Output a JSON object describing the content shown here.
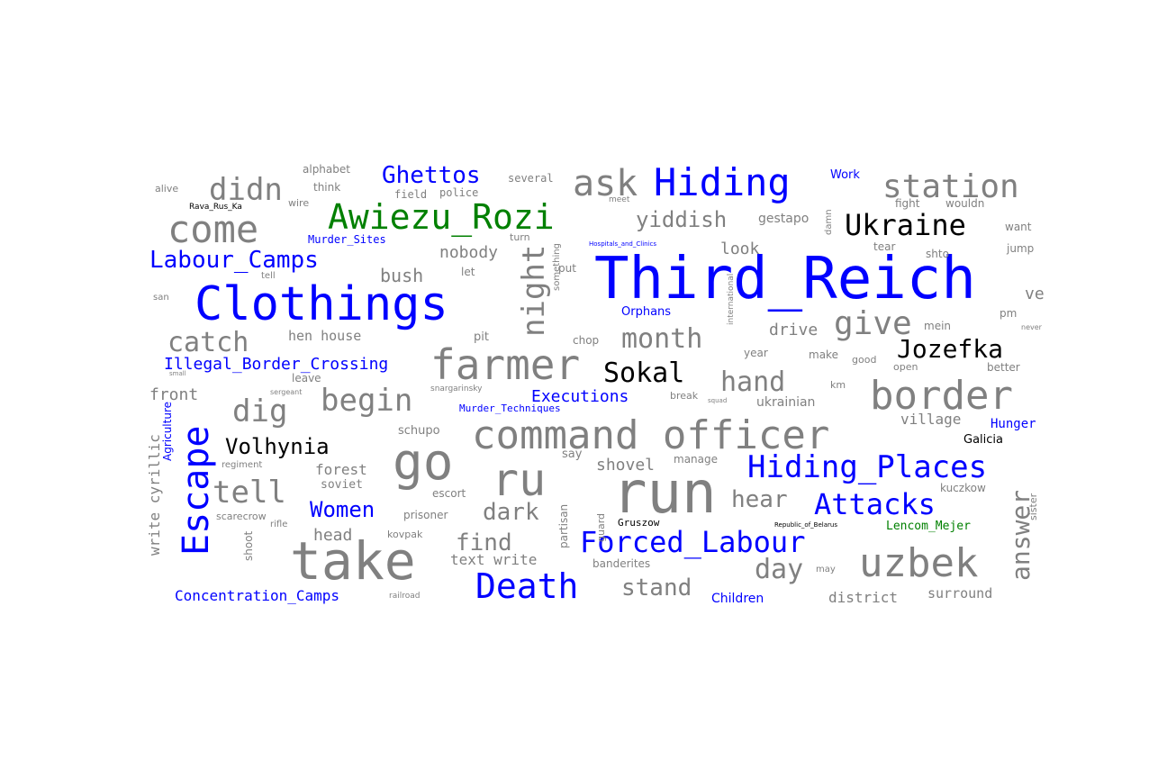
{
  "palette": {
    "topic": "#0000ff",
    "person": "#008000",
    "place": "#000000",
    "term": "#808080"
  },
  "words": [
    {
      "text": "Third_Reich",
      "cat": "topic"
    },
    {
      "text": "Clothings",
      "cat": "topic"
    },
    {
      "text": "take",
      "cat": "term"
    },
    {
      "text": "run",
      "cat": "term"
    },
    {
      "text": "go",
      "cat": "term"
    },
    {
      "text": "command officer",
      "cat": "term"
    },
    {
      "text": "farmer",
      "cat": "term"
    },
    {
      "text": "border",
      "cat": "term"
    },
    {
      "text": "Awiezu_Rozi",
      "cat": "person"
    },
    {
      "text": "Hiding",
      "cat": "topic"
    },
    {
      "text": "uzbek",
      "cat": "term"
    },
    {
      "text": "Escape",
      "cat": "topic"
    },
    {
      "text": "ru",
      "cat": "term"
    },
    {
      "text": "come",
      "cat": "term"
    },
    {
      "text": "ask",
      "cat": "term"
    },
    {
      "text": "station",
      "cat": "term"
    },
    {
      "text": "Hiding_Places",
      "cat": "topic"
    },
    {
      "text": "Death",
      "cat": "topic"
    },
    {
      "text": "Forced_Labour",
      "cat": "topic"
    },
    {
      "text": "Ukraine",
      "cat": "place"
    },
    {
      "text": "night",
      "cat": "term"
    },
    {
      "text": "give",
      "cat": "term"
    },
    {
      "text": "begin",
      "cat": "term"
    },
    {
      "text": "Attacks",
      "cat": "topic"
    },
    {
      "text": "tell",
      "cat": "term"
    },
    {
      "text": "Jozefka",
      "cat": "place"
    },
    {
      "text": "catch",
      "cat": "term"
    },
    {
      "text": "didn",
      "cat": "term"
    },
    {
      "text": "Sokal",
      "cat": "place"
    },
    {
      "text": "yiddish",
      "cat": "term"
    },
    {
      "text": "month",
      "cat": "term"
    },
    {
      "text": "hand",
      "cat": "term"
    },
    {
      "text": "dig",
      "cat": "term"
    },
    {
      "text": "answer",
      "cat": "term"
    },
    {
      "text": "day",
      "cat": "term"
    },
    {
      "text": "Labour_Camps",
      "cat": "topic"
    },
    {
      "text": "Ghettos",
      "cat": "topic"
    },
    {
      "text": "Volhynia",
      "cat": "place"
    },
    {
      "text": "hear",
      "cat": "term"
    },
    {
      "text": "stand",
      "cat": "term"
    },
    {
      "text": "find",
      "cat": "term"
    },
    {
      "text": "Women",
      "cat": "topic"
    },
    {
      "text": "dark",
      "cat": "term"
    },
    {
      "text": "shovel",
      "cat": "term"
    },
    {
      "text": "Illegal_Border_Crossing",
      "cat": "topic"
    },
    {
      "text": "Executions",
      "cat": "topic"
    },
    {
      "text": "drive",
      "cat": "term"
    },
    {
      "text": "nobody",
      "cat": "term"
    },
    {
      "text": "bush",
      "cat": "term"
    },
    {
      "text": "front",
      "cat": "term"
    },
    {
      "text": "look",
      "cat": "term"
    },
    {
      "text": "write cyrillic",
      "cat": "term"
    },
    {
      "text": "village",
      "cat": "term"
    },
    {
      "text": "forest",
      "cat": "term"
    },
    {
      "text": "district",
      "cat": "term"
    },
    {
      "text": "Concentration_Camps",
      "cat": "topic"
    },
    {
      "text": "text write",
      "cat": "term"
    },
    {
      "text": "head",
      "cat": "term"
    },
    {
      "text": "surround",
      "cat": "term"
    },
    {
      "text": "soviet",
      "cat": "term"
    },
    {
      "text": "hen house",
      "cat": "term"
    },
    {
      "text": "ve",
      "cat": "term"
    },
    {
      "text": "Hunger",
      "cat": "topic"
    },
    {
      "text": "Galicia",
      "cat": "place"
    },
    {
      "text": "Orphans",
      "cat": "topic"
    },
    {
      "text": "Children",
      "cat": "topic"
    },
    {
      "text": "schupo",
      "cat": "term"
    },
    {
      "text": "ukrainian",
      "cat": "term"
    },
    {
      "text": "Murder_Sites",
      "cat": "topic"
    },
    {
      "text": "Murder_Techniques",
      "cat": "topic"
    },
    {
      "text": "Work",
      "cat": "topic"
    },
    {
      "text": "Agriculture",
      "cat": "topic"
    },
    {
      "text": "Lencom_Mejer",
      "cat": "person"
    },
    {
      "text": "Gruszow",
      "cat": "place"
    },
    {
      "text": "gestapo",
      "cat": "term"
    },
    {
      "text": "several",
      "cat": "term"
    },
    {
      "text": "field",
      "cat": "term"
    },
    {
      "text": "police",
      "cat": "term"
    },
    {
      "text": "alphabet",
      "cat": "term"
    },
    {
      "text": "think",
      "cat": "term"
    },
    {
      "text": "alive",
      "cat": "term"
    },
    {
      "text": "wire",
      "cat": "term"
    },
    {
      "text": "turn",
      "cat": "term"
    },
    {
      "text": "let",
      "cat": "term"
    },
    {
      "text": "pit",
      "cat": "term"
    },
    {
      "text": "chop",
      "cat": "term"
    },
    {
      "text": "put",
      "cat": "term"
    },
    {
      "text": "something",
      "cat": "term"
    },
    {
      "text": "partisan",
      "cat": "term"
    },
    {
      "text": "guard",
      "cat": "term"
    },
    {
      "text": "say",
      "cat": "term"
    },
    {
      "text": "escort",
      "cat": "term"
    },
    {
      "text": "prisoner",
      "cat": "term"
    },
    {
      "text": "kovpak",
      "cat": "term"
    },
    {
      "text": "banderites",
      "cat": "term"
    },
    {
      "text": "scarecrow",
      "cat": "term"
    },
    {
      "text": "shoot",
      "cat": "term"
    },
    {
      "text": "rifle",
      "cat": "term"
    },
    {
      "text": "regiment",
      "cat": "term"
    },
    {
      "text": "leave",
      "cat": "term"
    },
    {
      "text": "sergeant",
      "cat": "term"
    },
    {
      "text": "manage",
      "cat": "term"
    },
    {
      "text": "kuczkow",
      "cat": "term"
    },
    {
      "text": "sister",
      "cat": "term"
    },
    {
      "text": "year",
      "cat": "term"
    },
    {
      "text": "make",
      "cat": "term"
    },
    {
      "text": "good",
      "cat": "term"
    },
    {
      "text": "open",
      "cat": "term"
    },
    {
      "text": "better",
      "cat": "term"
    },
    {
      "text": "km",
      "cat": "term"
    },
    {
      "text": "mein",
      "cat": "term"
    },
    {
      "text": "pm",
      "cat": "term"
    },
    {
      "text": "never",
      "cat": "term"
    },
    {
      "text": "shto",
      "cat": "term"
    },
    {
      "text": "tear",
      "cat": "term"
    },
    {
      "text": "jump",
      "cat": "term"
    },
    {
      "text": "want",
      "cat": "term"
    },
    {
      "text": "fight",
      "cat": "term"
    },
    {
      "text": "wouldn",
      "cat": "term"
    },
    {
      "text": "damn",
      "cat": "term"
    },
    {
      "text": "international",
      "cat": "term"
    },
    {
      "text": "meet",
      "cat": "term"
    },
    {
      "text": "Rava_Rus_Ka",
      "cat": "place"
    },
    {
      "text": "tell",
      "cat": "term"
    },
    {
      "text": "san",
      "cat": "term"
    },
    {
      "text": "small",
      "cat": "term"
    },
    {
      "text": "snargarinsky",
      "cat": "term"
    },
    {
      "text": "break",
      "cat": "term"
    },
    {
      "text": "squad",
      "cat": "term"
    },
    {
      "text": "railroad",
      "cat": "term"
    },
    {
      "text": "may",
      "cat": "term"
    },
    {
      "text": "Hospitals_and_Clinics",
      "cat": "topic"
    },
    {
      "text": "Republic_of_Belarus",
      "cat": "place"
    }
  ]
}
